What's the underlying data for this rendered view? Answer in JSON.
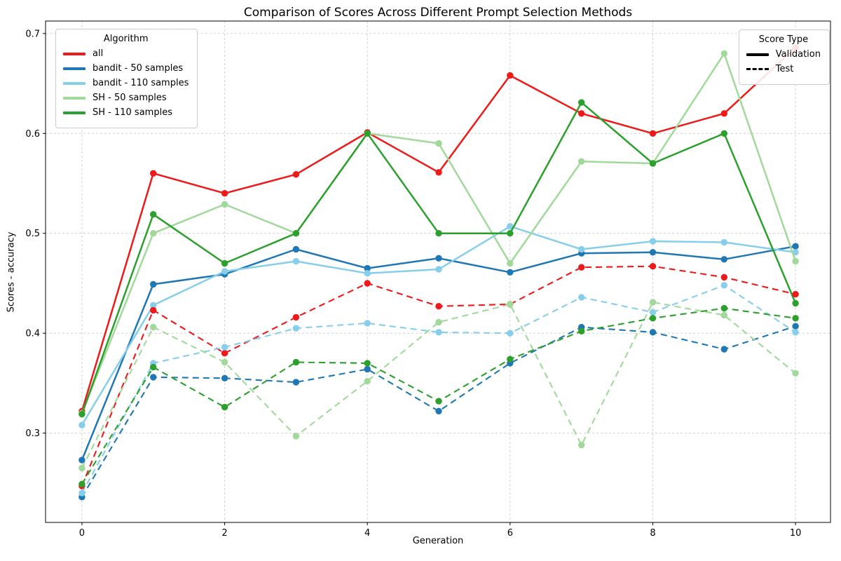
{
  "figure": {
    "title": "Comparison of Scores Across Different Prompt Selection Methods",
    "xlabel": "Generation",
    "ylabel": "Scores - accuracy"
  },
  "chart_data": {
    "type": "line",
    "title": "Comparison of Scores Across Different Prompt Selection Methods",
    "xlabel": "Generation",
    "ylabel": "Scores - accuracy",
    "grid": true,
    "x": [
      0,
      1,
      2,
      3,
      4,
      5,
      6,
      7,
      8,
      9,
      10
    ],
    "x_ticks": [
      0,
      2,
      4,
      6,
      8,
      10
    ],
    "y_ticks": [
      0.3,
      0.4,
      0.5,
      0.6,
      0.7
    ],
    "xlim": [
      -0.51,
      10.49
    ],
    "ylim": [
      0.2106,
      0.7125
    ],
    "series": [
      {
        "algorithm": "all",
        "score_type": "Validation",
        "color": "#ee1a1a",
        "dash": false,
        "values": [
          0.322,
          0.56,
          0.54,
          0.559,
          0.601,
          0.561,
          0.658,
          0.62,
          0.6,
          0.62,
          0.686
        ]
      },
      {
        "algorithm": "bandit - 50 samples",
        "score_type": "Validation",
        "color": "#1f77b4",
        "dash": false,
        "values": [
          0.273,
          0.449,
          0.459,
          0.484,
          0.465,
          0.475,
          0.461,
          0.48,
          0.481,
          0.474,
          0.487
        ]
      },
      {
        "algorithm": "bandit - 110 samples",
        "score_type": "Validation",
        "color": "#87ceeb",
        "dash": false,
        "values": [
          0.308,
          0.428,
          0.462,
          0.472,
          0.46,
          0.464,
          0.507,
          0.484,
          0.492,
          0.491,
          0.481
        ]
      },
      {
        "algorithm": "SH - 50 samples",
        "score_type": "Validation",
        "color": "#a1d99b",
        "dash": false,
        "values": [
          0.32,
          0.5,
          0.529,
          0.5,
          0.6,
          0.59,
          0.47,
          0.572,
          0.57,
          0.68,
          0.472
        ]
      },
      {
        "algorithm": "SH - 110 samples",
        "score_type": "Validation",
        "color": "#2ca02c",
        "dash": false,
        "values": [
          0.319,
          0.519,
          0.47,
          0.5,
          0.6,
          0.5,
          0.5,
          0.631,
          0.57,
          0.6,
          0.43
        ]
      },
      {
        "algorithm": "all",
        "score_type": "Test",
        "color": "#ee1a1a",
        "dash": true,
        "values": [
          0.247,
          0.423,
          0.38,
          0.416,
          0.45,
          0.427,
          0.429,
          0.466,
          0.467,
          0.456,
          0.439
        ]
      },
      {
        "algorithm": "bandit - 50 samples",
        "score_type": "Test",
        "color": "#1f77b4",
        "dash": true,
        "values": [
          0.236,
          0.356,
          0.355,
          0.351,
          0.364,
          0.322,
          0.37,
          0.406,
          0.401,
          0.384,
          0.407
        ]
      },
      {
        "algorithm": "bandit - 110 samples",
        "score_type": "Test",
        "color": "#87ceeb",
        "dash": true,
        "values": [
          0.24,
          0.37,
          0.386,
          0.405,
          0.41,
          0.401,
          0.4,
          0.436,
          0.421,
          0.448,
          0.401
        ]
      },
      {
        "algorithm": "SH - 50 samples",
        "score_type": "Test",
        "color": "#a1d99b",
        "dash": true,
        "values": [
          0.265,
          0.406,
          0.371,
          0.297,
          0.352,
          0.411,
          0.429,
          0.288,
          0.431,
          0.418,
          0.36
        ]
      },
      {
        "algorithm": "SH - 110 samples",
        "score_type": "Test",
        "color": "#2ca02c",
        "dash": true,
        "values": [
          0.249,
          0.366,
          0.326,
          0.371,
          0.37,
          0.332,
          0.374,
          0.402,
          0.415,
          0.425,
          0.415
        ]
      }
    ],
    "legends": [
      {
        "title": "Algorithm",
        "position": "upper-left",
        "entries": [
          {
            "label": "all",
            "color": "#ee1a1a",
            "dash": false
          },
          {
            "label": "bandit - 50 samples",
            "color": "#1f77b4",
            "dash": false
          },
          {
            "label": "bandit - 110 samples",
            "color": "#87ceeb",
            "dash": false
          },
          {
            "label": "SH - 50 samples",
            "color": "#a1d99b",
            "dash": false
          },
          {
            "label": "SH - 110 samples",
            "color": "#2ca02c",
            "dash": false
          }
        ]
      },
      {
        "title": "Score Type",
        "position": "upper-right",
        "entries": [
          {
            "label": "Validation",
            "color": "#000000",
            "dash": false
          },
          {
            "label": "Test",
            "color": "#000000",
            "dash": true
          }
        ]
      }
    ]
  }
}
